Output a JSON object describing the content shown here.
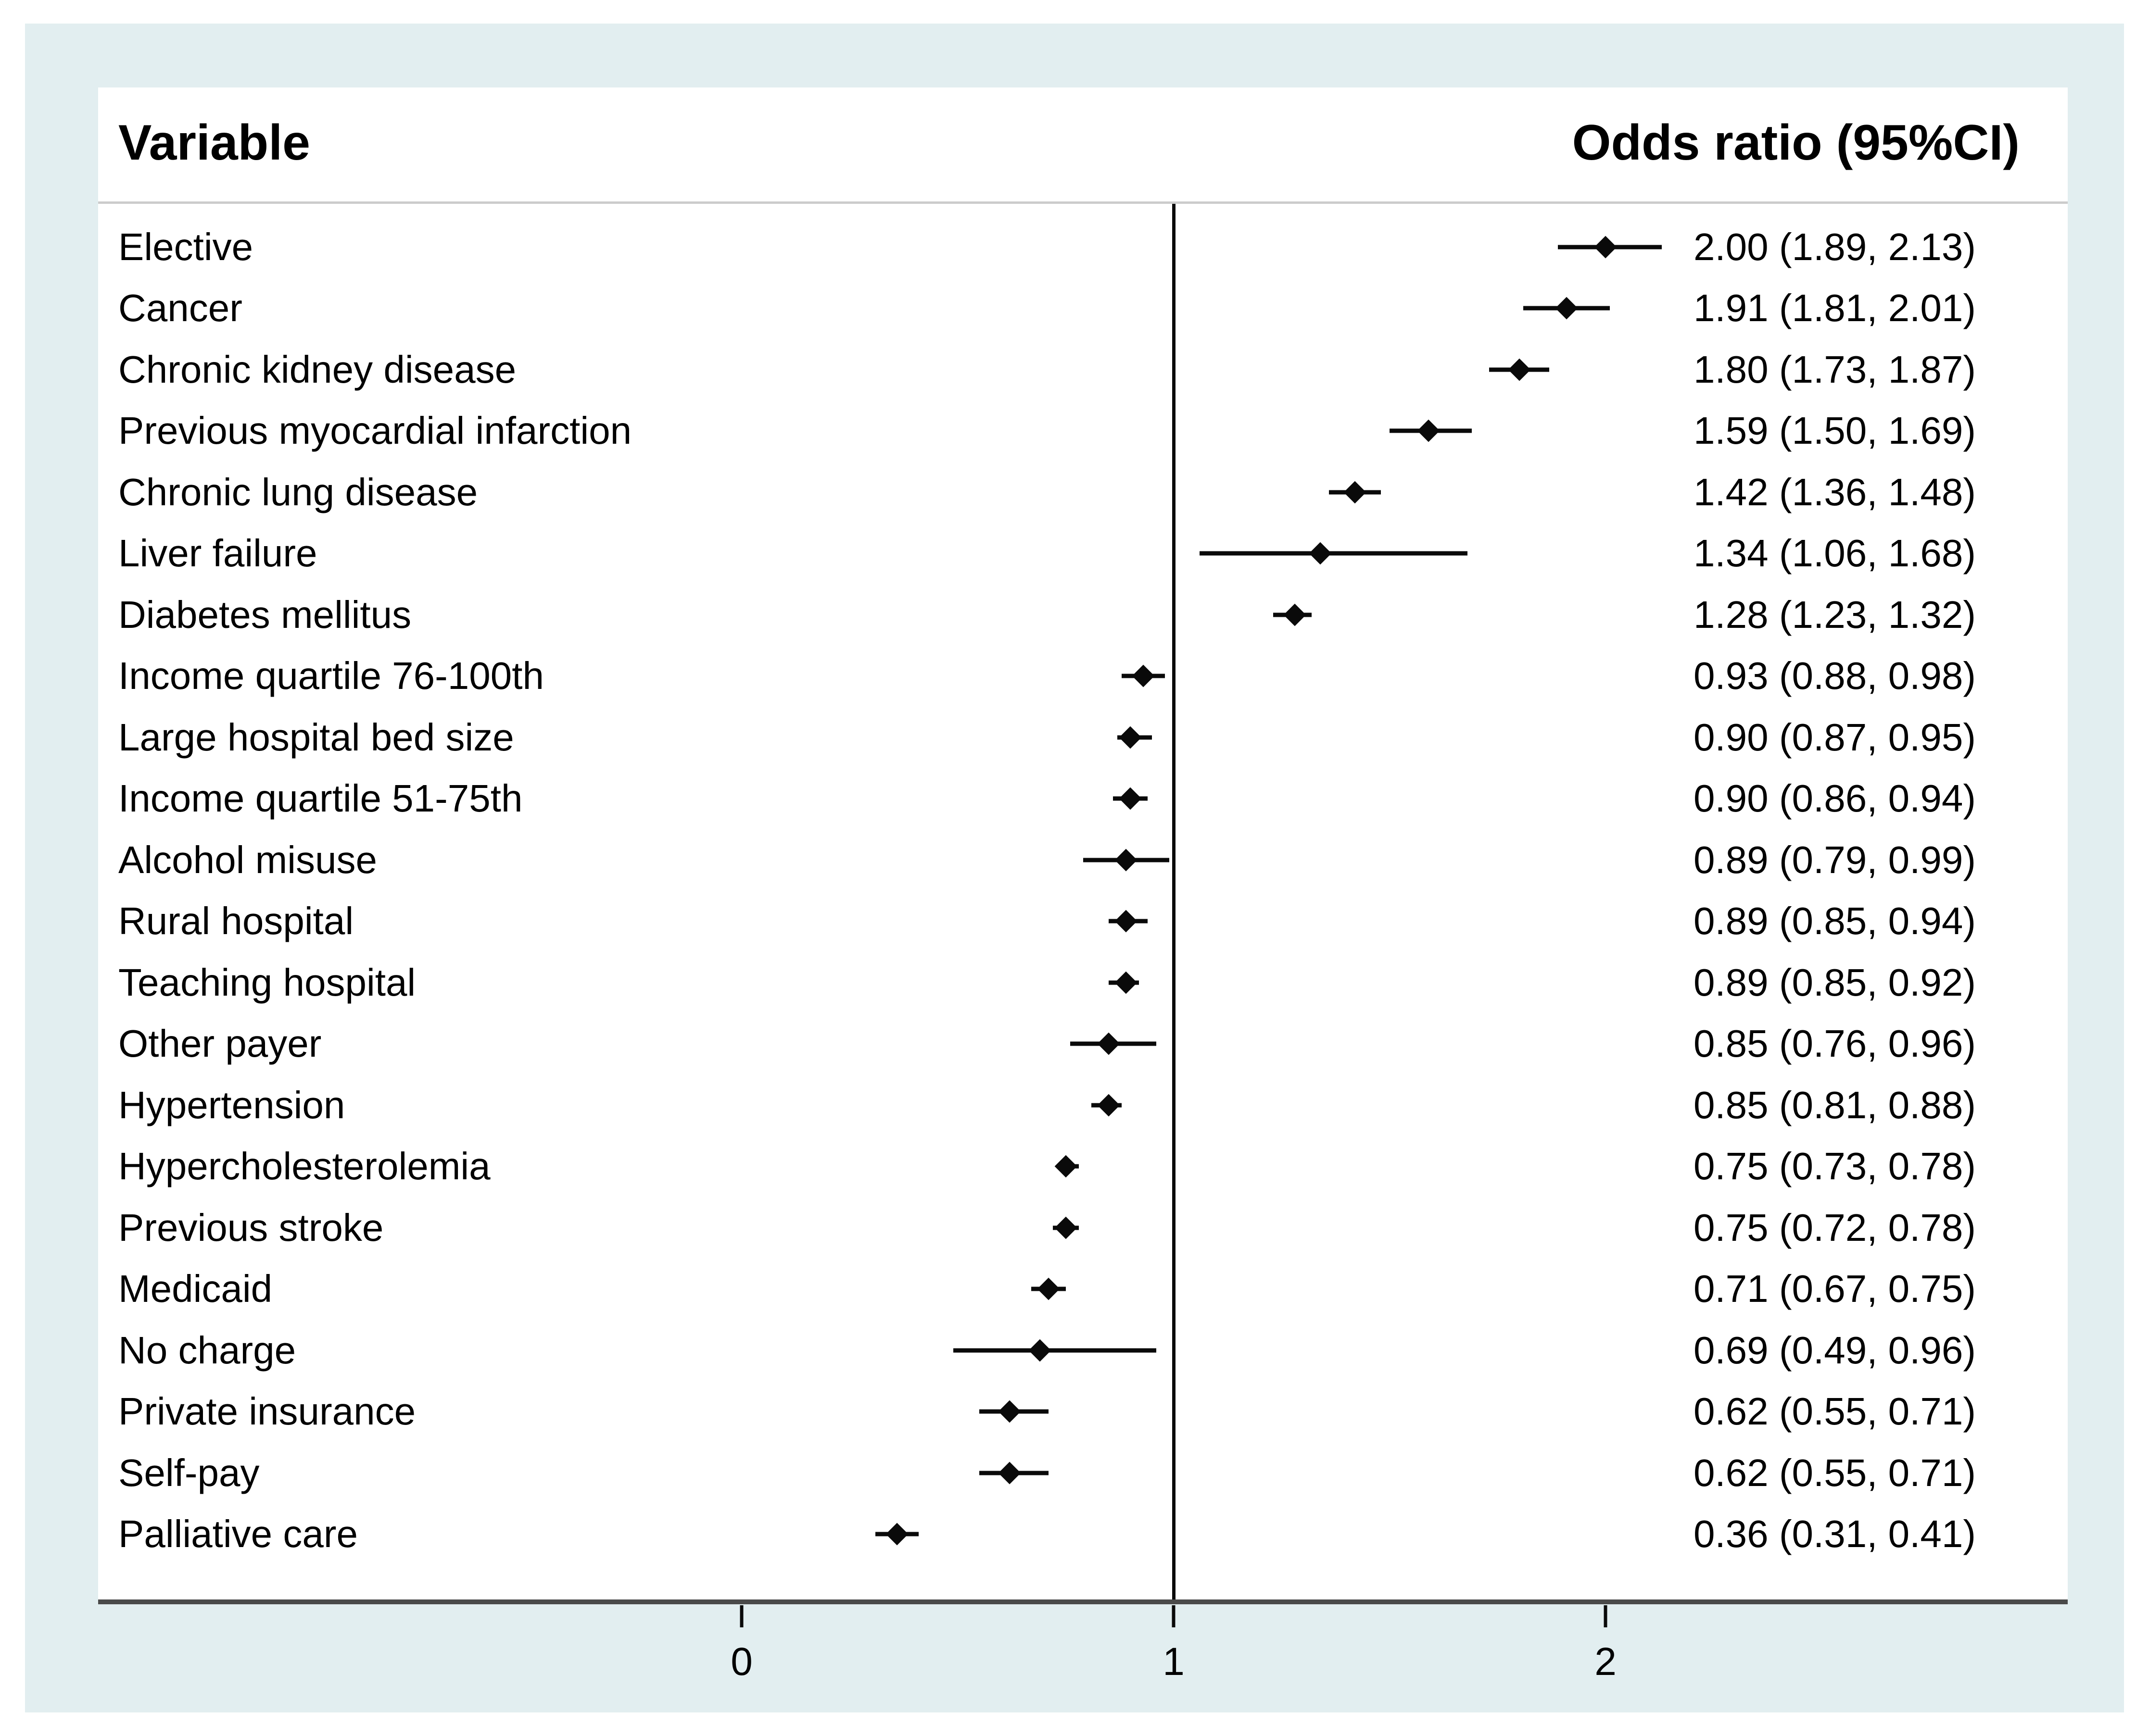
{
  "figure": {
    "header": {
      "variable_label": "Variable",
      "or_label": "Odds ratio (95%CI)"
    },
    "colors": {
      "page_background": "#ffffff",
      "mat_background": "#e2eef0",
      "panel_background": "#ffffff",
      "text": "#000000",
      "separator_line": "#cccccc",
      "axis_line": "#4a4a4a",
      "marker": "#0a0a0a"
    }
  },
  "chart_data": {
    "type": "scatter",
    "variant": "forest-plot",
    "title": "",
    "xlabel": "",
    "legend": "none",
    "grid": "off",
    "ref_line_x": 1,
    "x_range_panel": [
      -1.49,
      3.07
    ],
    "x_ticks": [
      {
        "value": 0,
        "label": "0"
      },
      {
        "value": 1,
        "label": "1"
      },
      {
        "value": 2,
        "label": "2"
      }
    ],
    "rows": [
      {
        "label": "Elective",
        "or": 2.0,
        "ci_low": 1.89,
        "ci_high": 2.13,
        "display": "2.00 (1.89, 2.13)"
      },
      {
        "label": "Cancer",
        "or": 1.91,
        "ci_low": 1.81,
        "ci_high": 2.01,
        "display": "1.91 (1.81, 2.01)"
      },
      {
        "label": "Chronic kidney disease",
        "or": 1.8,
        "ci_low": 1.73,
        "ci_high": 1.87,
        "display": "1.80 (1.73, 1.87)"
      },
      {
        "label": "Previous myocardial infarction",
        "or": 1.59,
        "ci_low": 1.5,
        "ci_high": 1.69,
        "display": "1.59 (1.50, 1.69)"
      },
      {
        "label": "Chronic lung disease",
        "or": 1.42,
        "ci_low": 1.36,
        "ci_high": 1.48,
        "display": "1.42 (1.36, 1.48)"
      },
      {
        "label": "Liver failure",
        "or": 1.34,
        "ci_low": 1.06,
        "ci_high": 1.68,
        "display": "1.34 (1.06, 1.68)"
      },
      {
        "label": "Diabetes mellitus",
        "or": 1.28,
        "ci_low": 1.23,
        "ci_high": 1.32,
        "display": "1.28 (1.23, 1.32)"
      },
      {
        "label": "Income quartile 76-100th",
        "or": 0.93,
        "ci_low": 0.88,
        "ci_high": 0.98,
        "display": "0.93 (0.88, 0.98)"
      },
      {
        "label": "Large hospital bed size",
        "or": 0.9,
        "ci_low": 0.87,
        "ci_high": 0.95,
        "display": "0.90 (0.87, 0.95)"
      },
      {
        "label": "Income quartile 51-75th",
        "or": 0.9,
        "ci_low": 0.86,
        "ci_high": 0.94,
        "display": "0.90 (0.86, 0.94)"
      },
      {
        "label": "Alcohol misuse",
        "or": 0.89,
        "ci_low": 0.79,
        "ci_high": 0.99,
        "display": "0.89 (0.79, 0.99)"
      },
      {
        "label": "Rural hospital",
        "or": 0.89,
        "ci_low": 0.85,
        "ci_high": 0.94,
        "display": "0.89 (0.85, 0.94)"
      },
      {
        "label": "Teaching hospital",
        "or": 0.89,
        "ci_low": 0.85,
        "ci_high": 0.92,
        "display": "0.89 (0.85, 0.92)"
      },
      {
        "label": "Other payer",
        "or": 0.85,
        "ci_low": 0.76,
        "ci_high": 0.96,
        "display": "0.85 (0.76, 0.96)"
      },
      {
        "label": "Hypertension",
        "or": 0.85,
        "ci_low": 0.81,
        "ci_high": 0.88,
        "display": "0.85 (0.81, 0.88)"
      },
      {
        "label": "Hypercholesterolemia",
        "or": 0.75,
        "ci_low": 0.73,
        "ci_high": 0.78,
        "display": "0.75 (0.73, 0.78)"
      },
      {
        "label": "Previous stroke",
        "or": 0.75,
        "ci_low": 0.72,
        "ci_high": 0.78,
        "display": "0.75 (0.72, 0.78)"
      },
      {
        "label": "Medicaid",
        "or": 0.71,
        "ci_low": 0.67,
        "ci_high": 0.75,
        "display": "0.71 (0.67, 0.75)"
      },
      {
        "label": "No charge",
        "or": 0.69,
        "ci_low": 0.49,
        "ci_high": 0.96,
        "display": "0.69 (0.49, 0.96)"
      },
      {
        "label": "Private insurance",
        "or": 0.62,
        "ci_low": 0.55,
        "ci_high": 0.71,
        "display": "0.62 (0.55, 0.71)"
      },
      {
        "label": "Self-pay",
        "or": 0.62,
        "ci_low": 0.55,
        "ci_high": 0.71,
        "display": "0.62 (0.55, 0.71)"
      },
      {
        "label": "Palliative care",
        "or": 0.36,
        "ci_low": 0.31,
        "ci_high": 0.41,
        "display": "0.36 (0.31, 0.41)"
      }
    ]
  }
}
